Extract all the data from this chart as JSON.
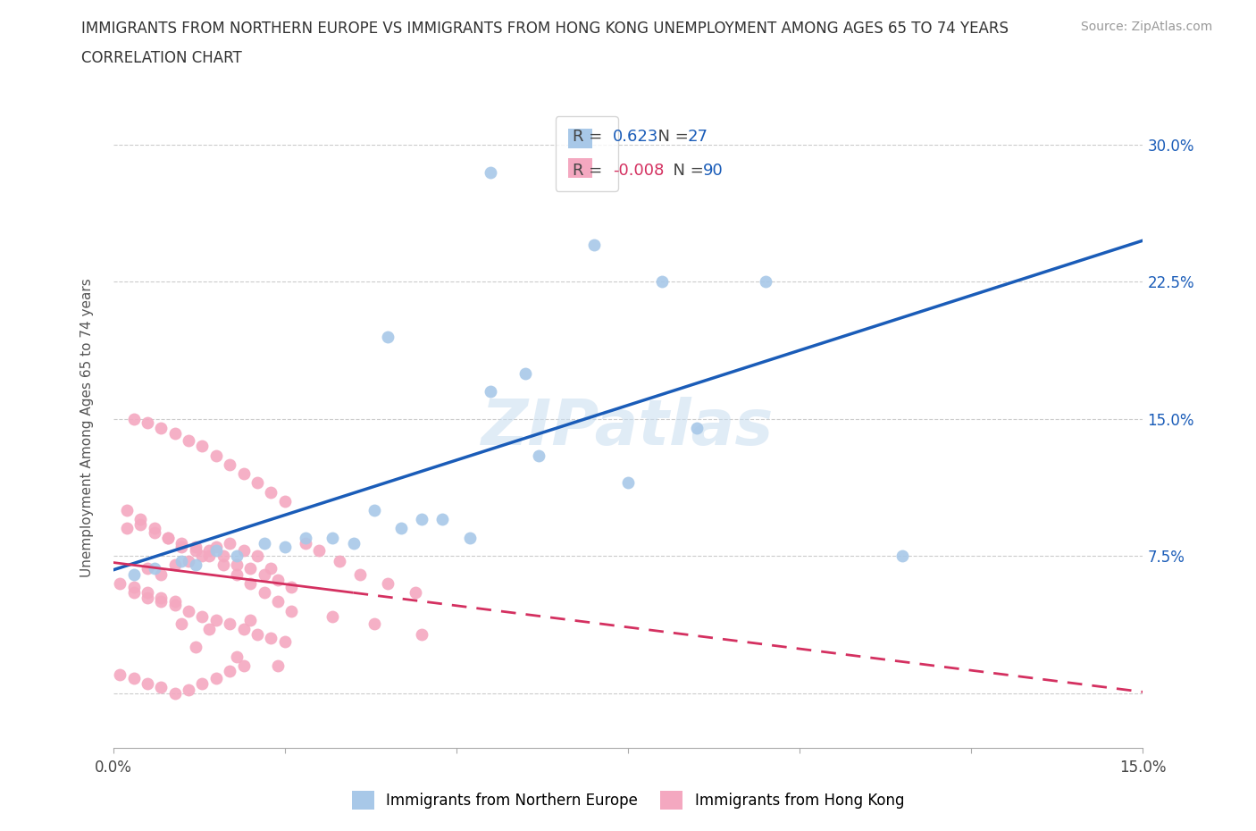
{
  "title_line1": "IMMIGRANTS FROM NORTHERN EUROPE VS IMMIGRANTS FROM HONG KONG UNEMPLOYMENT AMONG AGES 65 TO 74 YEARS",
  "title_line2": "CORRELATION CHART",
  "source": "Source: ZipAtlas.com",
  "ylabel": "Unemployment Among Ages 65 to 74 years",
  "xlim": [
    0.0,
    0.15
  ],
  "ylim": [
    -0.03,
    0.32
  ],
  "ytick_vals": [
    0.0,
    0.075,
    0.15,
    0.225,
    0.3
  ],
  "ytick_labels_right": [
    "",
    "7.5%",
    "15.0%",
    "22.5%",
    "30.0%"
  ],
  "xtick_vals": [
    0.0,
    0.025,
    0.05,
    0.075,
    0.1,
    0.125,
    0.15
  ],
  "R_blue": 0.623,
  "N_blue": 27,
  "R_pink": -0.008,
  "N_pink": 90,
  "color_blue": "#a8c8e8",
  "color_pink": "#f4a8c0",
  "trendline_blue": "#1a5cb8",
  "trendline_pink": "#d43060",
  "watermark": "ZIPatlas",
  "legend_label_blue": "Immigrants from Northern Europe",
  "legend_label_pink": "Immigrants from Hong Kong",
  "blue_x": [
    0.055,
    0.055,
    0.07,
    0.04,
    0.06,
    0.08,
    0.062,
    0.038,
    0.028,
    0.022,
    0.015,
    0.01,
    0.006,
    0.003,
    0.012,
    0.018,
    0.025,
    0.032,
    0.042,
    0.048,
    0.052,
    0.035,
    0.045,
    0.095,
    0.115,
    0.085,
    0.075
  ],
  "blue_y": [
    0.285,
    0.165,
    0.245,
    0.195,
    0.175,
    0.225,
    0.13,
    0.1,
    0.085,
    0.082,
    0.078,
    0.072,
    0.068,
    0.065,
    0.07,
    0.075,
    0.08,
    0.085,
    0.09,
    0.095,
    0.085,
    0.082,
    0.095,
    0.225,
    0.075,
    0.145,
    0.115
  ],
  "pink_x": [
    0.005,
    0.007,
    0.009,
    0.011,
    0.013,
    0.015,
    0.017,
    0.019,
    0.021,
    0.023,
    0.003,
    0.005,
    0.007,
    0.009,
    0.011,
    0.013,
    0.015,
    0.017,
    0.019,
    0.021,
    0.023,
    0.025,
    0.002,
    0.004,
    0.006,
    0.008,
    0.01,
    0.012,
    0.014,
    0.016,
    0.018,
    0.02,
    0.022,
    0.024,
    0.026,
    0.001,
    0.003,
    0.005,
    0.007,
    0.009,
    0.011,
    0.013,
    0.015,
    0.017,
    0.019,
    0.002,
    0.004,
    0.006,
    0.008,
    0.01,
    0.012,
    0.014,
    0.016,
    0.018,
    0.02,
    0.022,
    0.024,
    0.003,
    0.005,
    0.007,
    0.009,
    0.011,
    0.013,
    0.015,
    0.017,
    0.019,
    0.021,
    0.023,
    0.025,
    0.001,
    0.003,
    0.005,
    0.007,
    0.009,
    0.028,
    0.03,
    0.033,
    0.036,
    0.04,
    0.044,
    0.01,
    0.014,
    0.02,
    0.026,
    0.032,
    0.038,
    0.045,
    0.012,
    0.018,
    0.024
  ],
  "pink_y": [
    0.068,
    0.065,
    0.07,
    0.072,
    0.075,
    0.08,
    0.082,
    0.078,
    0.075,
    0.068,
    0.055,
    0.052,
    0.05,
    0.048,
    0.045,
    0.042,
    0.04,
    0.038,
    0.035,
    0.032,
    0.03,
    0.028,
    0.09,
    0.092,
    0.088,
    0.085,
    0.082,
    0.08,
    0.078,
    0.075,
    0.07,
    0.068,
    0.065,
    0.062,
    0.058,
    0.01,
    0.008,
    0.005,
    0.003,
    0.0,
    0.002,
    0.005,
    0.008,
    0.012,
    0.015,
    0.1,
    0.095,
    0.09,
    0.085,
    0.08,
    0.078,
    0.075,
    0.07,
    0.065,
    0.06,
    0.055,
    0.05,
    0.15,
    0.148,
    0.145,
    0.142,
    0.138,
    0.135,
    0.13,
    0.125,
    0.12,
    0.115,
    0.11,
    0.105,
    0.06,
    0.058,
    0.055,
    0.052,
    0.05,
    0.082,
    0.078,
    0.072,
    0.065,
    0.06,
    0.055,
    0.038,
    0.035,
    0.04,
    0.045,
    0.042,
    0.038,
    0.032,
    0.025,
    0.02,
    0.015
  ]
}
